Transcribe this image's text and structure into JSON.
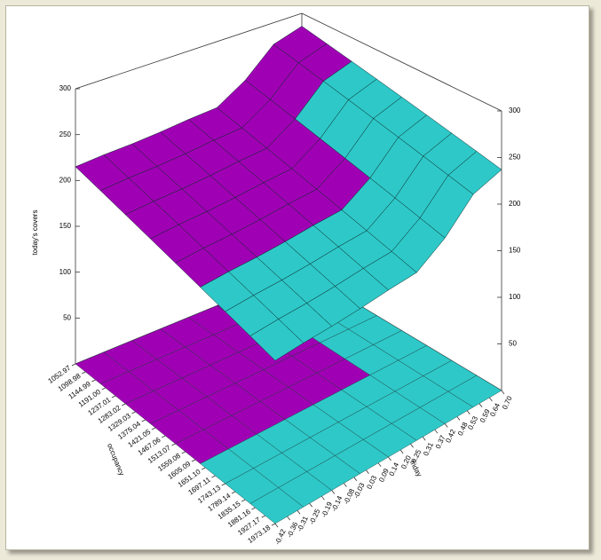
{
  "chart_data": {
    "type": "surface3d",
    "xlabel": "occupancy",
    "ylabel": "friday",
    "zlabel": "today's covers",
    "xlim": [
      1052.97,
      1973.18
    ],
    "ylim": [
      -0.42,
      0.7
    ],
    "zlim": [
      0,
      300
    ],
    "xticks": [
      1052.97,
      1098.98,
      1144.99,
      {
        "value": 1191,
        "label": "1191.00"
      },
      1237.01,
      1283.02,
      1329.03,
      1375.04,
      1421.05,
      1467.06,
      1513.07,
      1559.08,
      1605.09,
      {
        "value": 1651.1,
        "label": "1651.10"
      },
      1697.11,
      1743.13,
      1789.14,
      1835.15,
      1881.16,
      1927.17,
      1973.18
    ],
    "yticks": [
      -0.42,
      -0.36,
      -0.31,
      -0.25,
      -0.19,
      -0.14,
      -0.08,
      -0.03,
      0.03,
      0.09,
      0.14,
      {
        "value": 0.2,
        "label": "0.20"
      },
      0.25,
      0.31,
      0.37,
      0.42,
      0.48,
      0.53,
      0.59,
      0.64,
      {
        "value": 0.7,
        "label": "0.70"
      }
    ],
    "zticks": [
      50,
      100,
      150,
      200,
      250,
      300
    ],
    "x": [
      1052.97,
      1168,
      1283,
      1398,
      1513,
      1628,
      1743,
      1858,
      1973.18
    ],
    "y": [
      -0.42,
      -0.28,
      -0.14,
      0,
      0.14,
      0.28,
      0.42,
      0.56,
      0.7
    ],
    "series": [
      {
        "color": "#a000b4",
        "z": [
          [
            215,
            217,
            218,
            220,
            223,
            225,
            245,
            275,
            285
          ],
          [
            209,
            211,
            212,
            214,
            217,
            219,
            239,
            269,
            279
          ],
          [
            203,
            205,
            206,
            208,
            211,
            213,
            null,
            null,
            null
          ],
          [
            197,
            199,
            200,
            202,
            205,
            207,
            null,
            null,
            null
          ],
          [
            191,
            193,
            194,
            196,
            199,
            201,
            null,
            null,
            null
          ],
          [
            null,
            null,
            null,
            null,
            null,
            null,
            null,
            null,
            null
          ],
          [
            null,
            null,
            null,
            null,
            null,
            null,
            null,
            null,
            null
          ],
          [
            null,
            null,
            null,
            null,
            null,
            null,
            null,
            null,
            null
          ],
          [
            null,
            null,
            null,
            null,
            null,
            null,
            null,
            null,
            null
          ]
        ]
      },
      {
        "color": "#2ec8c8",
        "z": [
          [
            null,
            null,
            null,
            null,
            null,
            null,
            null,
            null,
            null
          ],
          [
            null,
            null,
            null,
            null,
            null,
            null,
            null,
            null,
            null
          ],
          [
            null,
            null,
            null,
            null,
            null,
            null,
            233,
            263,
            273
          ],
          [
            null,
            null,
            null,
            null,
            null,
            null,
            227,
            257,
            267
          ],
          [
            null,
            null,
            null,
            null,
            null,
            null,
            221,
            251,
            261
          ],
          [
            185,
            187,
            188,
            190,
            193,
            195,
            215,
            245,
            255
          ],
          [
            179,
            181,
            182,
            184,
            187,
            189,
            209,
            239,
            249
          ],
          [
            173,
            175,
            176,
            178,
            181,
            183,
            203,
            233,
            243
          ],
          [
            167,
            169,
            170,
            172,
            175,
            177,
            197,
            227,
            237
          ]
        ]
      }
    ]
  }
}
